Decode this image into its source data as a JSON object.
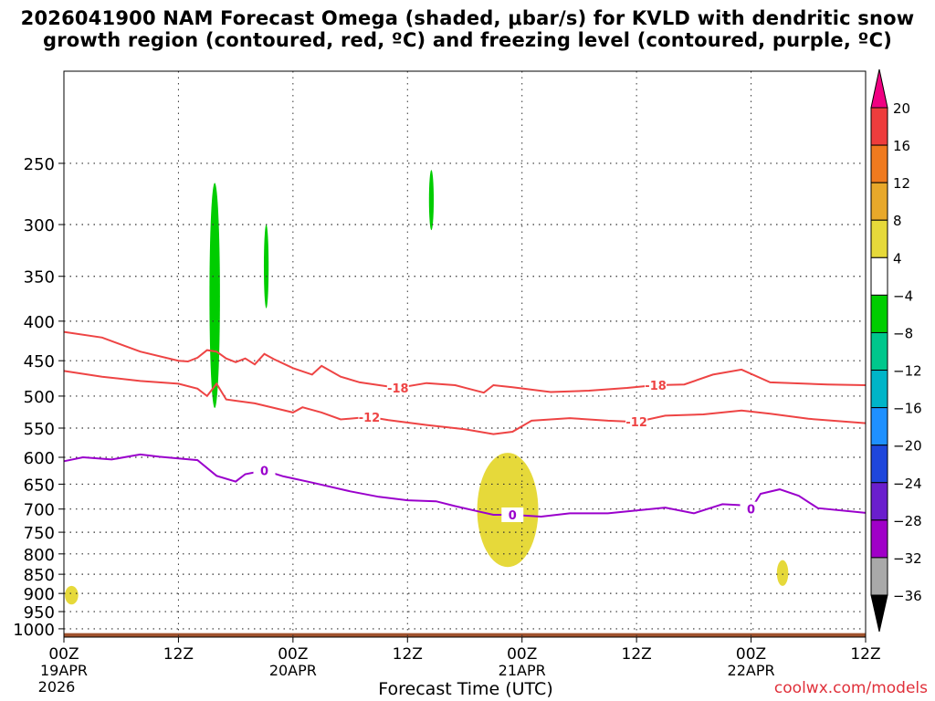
{
  "page": {
    "title": "2026041900 NAM Forecast Omega (shaded, μbar/s) for KVLD with dendritic snow growth region (contoured, red, ºC) and freezing level (contoured, purple, ºC)",
    "credit": "coolwx.com/models"
  },
  "chart_data": {
    "type": "contour",
    "title": "2026041900 NAM Forecast Omega (shaded, μbar/s) for KVLD with dendritic snow growth region (contoured, red, ºC) and freezing level (contoured, purple, ºC)",
    "xlabel": "Forecast Time (UTC)",
    "x_unit": "forecast hour",
    "xlim": [
      0,
      84
    ],
    "ylim": [
      1025,
      190
    ],
    "y_scale": "log",
    "grid": true,
    "y_ticks": [
      250,
      300,
      350,
      400,
      450,
      500,
      550,
      600,
      650,
      700,
      750,
      800,
      850,
      900,
      950,
      1000
    ],
    "x_ticks": [
      {
        "x": 0,
        "label": "00Z",
        "sub": "19APR",
        "sub2": "2026"
      },
      {
        "x": 12,
        "label": "12Z",
        "sub": "",
        "sub2": ""
      },
      {
        "x": 24,
        "label": "00Z",
        "sub": "20APR",
        "sub2": ""
      },
      {
        "x": 36,
        "label": "12Z",
        "sub": "",
        "sub2": ""
      },
      {
        "x": 48,
        "label": "00Z",
        "sub": "21APR",
        "sub2": ""
      },
      {
        "x": 60,
        "label": "12Z",
        "sub": "",
        "sub2": ""
      },
      {
        "x": 72,
        "label": "00Z",
        "sub": "22APR",
        "sub2": ""
      },
      {
        "x": 84,
        "label": "12Z",
        "sub": "",
        "sub2": ""
      }
    ],
    "legend": {
      "placement": "right",
      "labels": [
        "20",
        "16",
        "12",
        "8",
        "4",
        "−4",
        "−8",
        "−12",
        "−16",
        "−20",
        "−24",
        "−28",
        "−32",
        "−36"
      ],
      "colors": [
        "#f00082",
        "#ee3c3c",
        "#f07a1e",
        "#e8a82a",
        "#e6d93a",
        "#ffffff",
        "#00cd00",
        "#00c78c",
        "#00b5c8",
        "#1e90ff",
        "#1e46dc",
        "#6a1ecd",
        "#a000c8",
        "#a9a9a9",
        "#000000"
      ]
    },
    "series": [
      {
        "name": "-18",
        "color": "#ee4444",
        "label_at": [
          [
            35,
            488
          ],
          [
            62,
            484
          ]
        ],
        "points": [
          [
            0,
            413
          ],
          [
            4,
            420
          ],
          [
            8,
            438
          ],
          [
            12,
            450
          ],
          [
            13,
            451
          ],
          [
            14,
            446
          ],
          [
            15,
            436
          ],
          [
            16,
            438
          ],
          [
            17,
            447
          ],
          [
            18,
            452
          ],
          [
            19,
            447
          ],
          [
            20,
            455
          ],
          [
            21,
            441
          ],
          [
            22,
            448
          ],
          [
            24,
            460
          ],
          [
            26,
            469
          ],
          [
            27,
            457
          ],
          [
            29,
            472
          ],
          [
            31,
            480
          ],
          [
            35,
            488
          ],
          [
            38,
            481
          ],
          [
            41,
            484
          ],
          [
            44,
            495
          ],
          [
            45,
            484
          ],
          [
            47,
            487
          ],
          [
            51,
            494
          ],
          [
            55,
            492
          ],
          [
            59,
            488
          ],
          [
            62,
            484
          ],
          [
            65,
            483
          ],
          [
            68,
            469
          ],
          [
            71,
            462
          ],
          [
            74,
            480
          ],
          [
            80,
            483
          ],
          [
            84,
            484
          ]
        ]
      },
      {
        "name": "-12",
        "color": "#ee4444",
        "label_at": [
          [
            32,
            532
          ],
          [
            60,
            540
          ]
        ],
        "points": [
          [
            0,
            464
          ],
          [
            4,
            472
          ],
          [
            8,
            478
          ],
          [
            12,
            482
          ],
          [
            14,
            489
          ],
          [
            15,
            500
          ],
          [
            16,
            482
          ],
          [
            17,
            505
          ],
          [
            20,
            511
          ],
          [
            22,
            518
          ],
          [
            24,
            525
          ],
          [
            25,
            517
          ],
          [
            27,
            525
          ],
          [
            29,
            536
          ],
          [
            32,
            532
          ],
          [
            34,
            537
          ],
          [
            38,
            545
          ],
          [
            42,
            552
          ],
          [
            45,
            560
          ],
          [
            47,
            556
          ],
          [
            49,
            538
          ],
          [
            53,
            534
          ],
          [
            57,
            538
          ],
          [
            60,
            540
          ],
          [
            63,
            530
          ],
          [
            67,
            528
          ],
          [
            71,
            522
          ],
          [
            74,
            527
          ],
          [
            78,
            535
          ],
          [
            84,
            542
          ]
        ]
      },
      {
        "name": "0",
        "color": "#9a00cc",
        "label_at": [
          [
            21,
            624
          ],
          [
            47,
            712
          ],
          [
            72,
            700
          ]
        ],
        "points": [
          [
            0,
            607
          ],
          [
            2,
            600
          ],
          [
            5,
            604
          ],
          [
            8,
            595
          ],
          [
            10,
            599
          ],
          [
            12,
            602
          ],
          [
            14,
            605
          ],
          [
            16,
            634
          ],
          [
            18,
            645
          ],
          [
            19,
            631
          ],
          [
            21,
            624
          ],
          [
            23,
            635
          ],
          [
            26,
            647
          ],
          [
            30,
            664
          ],
          [
            33,
            675
          ],
          [
            36,
            682
          ],
          [
            39,
            684
          ],
          [
            41,
            694
          ],
          [
            43,
            703
          ],
          [
            45,
            712
          ],
          [
            47,
            712
          ],
          [
            50,
            716
          ],
          [
            53,
            709
          ],
          [
            57,
            709
          ],
          [
            60,
            703
          ],
          [
            63,
            697
          ],
          [
            66,
            709
          ],
          [
            69,
            690
          ],
          [
            71,
            692
          ],
          [
            72,
            700
          ],
          [
            73,
            669
          ],
          [
            75,
            660
          ],
          [
            77,
            673
          ],
          [
            79,
            698
          ],
          [
            84,
            708
          ]
        ]
      }
    ],
    "shaded_regions": [
      {
        "value_range": "-8 to -4",
        "color": "#00cd00",
        "center": [
          15.8,
          400
        ],
        "extent_x": [
          15.3,
          16.4
        ],
        "extent_y": [
          265,
          518
        ]
      },
      {
        "value_range": "-8 to -4",
        "color": "#00cd00",
        "center": [
          21.2,
          340
        ],
        "extent_x": [
          21.0,
          21.5
        ],
        "extent_y": [
          300,
          385
        ]
      },
      {
        "value_range": "-8 to -4",
        "color": "#00cd00",
        "center": [
          38.5,
          280
        ],
        "extent_x": [
          38.3,
          38.8
        ],
        "extent_y": [
          255,
          305
        ]
      },
      {
        "value_range": "4 to 8",
        "color": "#e6d93a",
        "center": [
          46.5,
          700
        ],
        "extent_x": [
          42.7,
          49.1
        ],
        "extent_y": [
          592,
          832
        ]
      },
      {
        "value_range": "4 to 8",
        "color": "#e6d93a",
        "center": [
          0.8,
          905
        ],
        "extent_x": [
          0.3,
          1.7
        ],
        "extent_y": [
          880,
          930
        ]
      },
      {
        "value_range": "4 to 8",
        "color": "#e6d93a",
        "center": [
          75.3,
          845
        ],
        "extent_x": [
          74.8,
          76.0
        ],
        "extent_y": [
          815,
          880
        ]
      }
    ],
    "terrain": {
      "color": "#a0522d",
      "surface_pressure": 1013
    }
  }
}
